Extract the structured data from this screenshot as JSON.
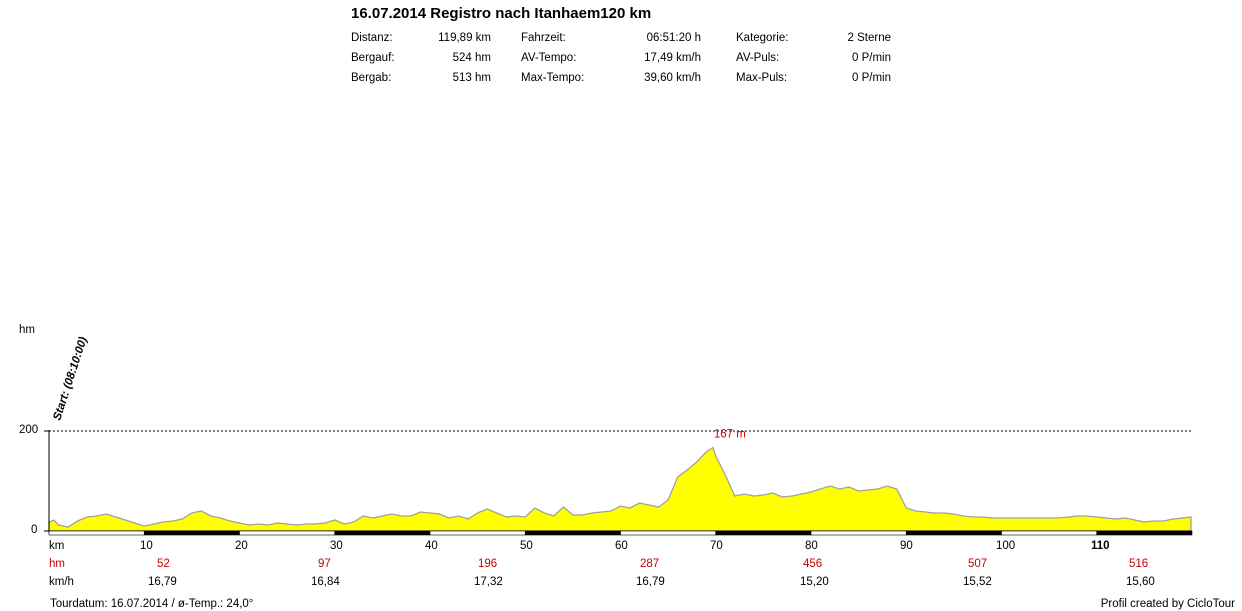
{
  "title": "16.07.2014 Registro nach Itanhaem120 km",
  "stats": [
    {
      "label": "Distanz:",
      "value": "119,89 km"
    },
    {
      "label": "Bergauf:",
      "value": "524 hm"
    },
    {
      "label": "Bergab:",
      "value": "513 hm"
    },
    {
      "label": "Fahrzeit:",
      "value": "06:51:20 h"
    },
    {
      "label": "AV-Tempo:",
      "value": "17,49 km/h"
    },
    {
      "label": "Max-Tempo:",
      "value": "39,60 km/h"
    },
    {
      "label": "Kategorie:",
      "value": "2 Sterne"
    },
    {
      "label": "AV-Puls:",
      "value": "0 P/min"
    },
    {
      "label": "Max-Puls:",
      "value": "0 P/min"
    }
  ],
  "chart_data": {
    "type": "area",
    "ylabel": "hm",
    "xlabel": "km",
    "ylim": [
      0,
      200
    ],
    "xlim": [
      0,
      120
    ],
    "yticks": [
      "200",
      "0"
    ],
    "xticks": [
      "10",
      "20",
      "30",
      "40",
      "50",
      "60",
      "70",
      "80",
      "90",
      "100",
      "110"
    ],
    "start_annotation": "Start: (08:10:00)",
    "peak_annotation": {
      "text": "167 m",
      "x": 69.7,
      "y": 167
    },
    "fill_color": "#ffff00",
    "line_color": "#a0a0a0",
    "x": [
      0,
      0.5,
      1,
      2,
      3,
      4,
      5,
      6,
      7,
      8,
      9,
      10,
      11,
      12,
      13,
      14,
      15,
      16,
      17,
      18,
      19,
      20,
      21,
      22,
      23,
      24,
      25,
      26,
      27,
      28,
      29,
      30,
      31,
      32,
      33,
      34,
      35,
      36,
      37,
      38,
      39,
      40,
      41,
      42,
      43,
      44,
      45,
      46,
      47,
      48,
      49,
      50,
      51,
      52,
      53,
      54,
      55,
      56,
      57,
      58,
      59,
      60,
      61,
      62,
      63,
      64,
      65,
      66,
      67,
      68,
      69,
      69.7,
      70,
      71,
      72,
      73,
      74,
      75,
      76,
      77,
      78,
      79,
      80,
      81,
      82,
      83,
      84,
      85,
      86,
      87,
      88,
      89,
      90,
      91,
      92,
      93,
      94,
      95,
      96,
      97,
      98,
      99,
      100,
      101,
      102,
      103,
      104,
      105,
      106,
      107,
      108,
      109,
      110,
      111,
      112,
      113,
      114,
      115,
      116,
      117,
      118,
      119,
      119.9
    ],
    "y": [
      18,
      22,
      12,
      8,
      20,
      28,
      30,
      34,
      28,
      22,
      16,
      10,
      14,
      18,
      20,
      24,
      36,
      40,
      30,
      26,
      20,
      16,
      12,
      14,
      12,
      16,
      14,
      12,
      14,
      14,
      16,
      22,
      14,
      18,
      30,
      26,
      30,
      34,
      30,
      30,
      38,
      36,
      34,
      26,
      30,
      24,
      36,
      44,
      36,
      28,
      30,
      28,
      46,
      36,
      30,
      48,
      32,
      32,
      36,
      38,
      40,
      50,
      46,
      56,
      52,
      48,
      62,
      108,
      122,
      138,
      158,
      167,
      150,
      112,
      70,
      74,
      70,
      72,
      76,
      68,
      70,
      74,
      78,
      84,
      90,
      84,
      88,
      80,
      82,
      84,
      90,
      84,
      46,
      40,
      38,
      36,
      36,
      34,
      30,
      28,
      28,
      26,
      26,
      26,
      26,
      26,
      26,
      26,
      26,
      28,
      30,
      30,
      28,
      26,
      24,
      26,
      22,
      18,
      20,
      20,
      24,
      26,
      28
    ],
    "hm_row": {
      "label": "hm",
      "values": [
        "52",
        "97",
        "196",
        "287",
        "456",
        "507",
        "516"
      ]
    },
    "kmh_row": {
      "label": "km/h",
      "values": [
        "16,79",
        "16,84",
        "17,32",
        "16,79",
        "15,20",
        "15,52",
        "15,60"
      ]
    }
  },
  "footer": {
    "left": "Tourdatum: 16.07.2014  /  ø-Temp.: 24,0°",
    "right": "Profil created by CicloTour"
  }
}
